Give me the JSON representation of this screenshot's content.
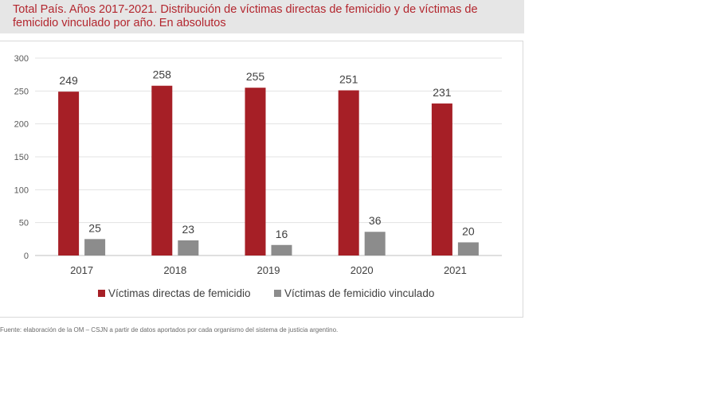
{
  "header": {
    "title": "Total País. Años 2017-2021. Distribución de víctimas directas de femicidio y de víctimas de femicidio vinculado por año. En absolutos"
  },
  "chart_data": {
    "type": "bar",
    "title": "Total País. Años 2017-2021. Distribución de víctimas directas de femicidio y de víctimas de femicidio vinculado por año. En absolutos",
    "categories": [
      "2017",
      "2018",
      "2019",
      "2020",
      "2021"
    ],
    "series": [
      {
        "name": "Víctimas directas de femicidio",
        "values": [
          249,
          258,
          255,
          251,
          231
        ],
        "color": "#a61f26"
      },
      {
        "name": "Víctimas de femicidio vinculado",
        "values": [
          25,
          23,
          16,
          36,
          20
        ],
        "color": "#8c8c8c"
      }
    ],
    "ylim": [
      0,
      300
    ],
    "yticks": [
      "0",
      "50",
      "100",
      "150",
      "200",
      "250",
      "300"
    ],
    "xlabel": "",
    "ylabel": "",
    "grid": true,
    "legend": "bottom"
  },
  "footer": {
    "source": "Fuente: elaboración de la OM – CSJN a partir de datos aportados por cada organismo del sistema de justicia argentino."
  }
}
